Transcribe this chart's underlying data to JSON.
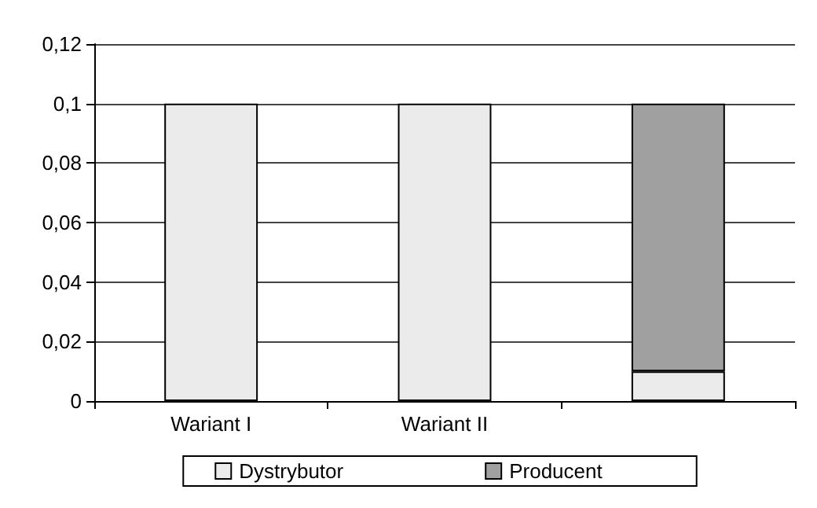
{
  "chart_data": {
    "type": "bar",
    "stacked": true,
    "categories": [
      "Wariant I",
      "Wariant II",
      null
    ],
    "series": [
      {
        "name": "Dystrybutor",
        "color": "#ebebeb",
        "values": [
          0.1,
          0.1,
          0.01
        ]
      },
      {
        "name": "Producent",
        "color": "#a0a0a0",
        "values": [
          null,
          null,
          0.09
        ]
      }
    ],
    "ylim": [
      0,
      0.12
    ],
    "yticks": [
      0,
      {
        "value": 0.02,
        "label": "0,02"
      },
      {
        "value": 0.04,
        "label": "0,04"
      },
      {
        "value": 0.06,
        "label": "0,06"
      },
      {
        "value": 0.08,
        "label": "0,08"
      },
      {
        "value": 0.1,
        "label": "0,1"
      },
      {
        "value": 0.12,
        "label": "0,12"
      }
    ],
    "grid": "y",
    "legend": "bottom"
  }
}
